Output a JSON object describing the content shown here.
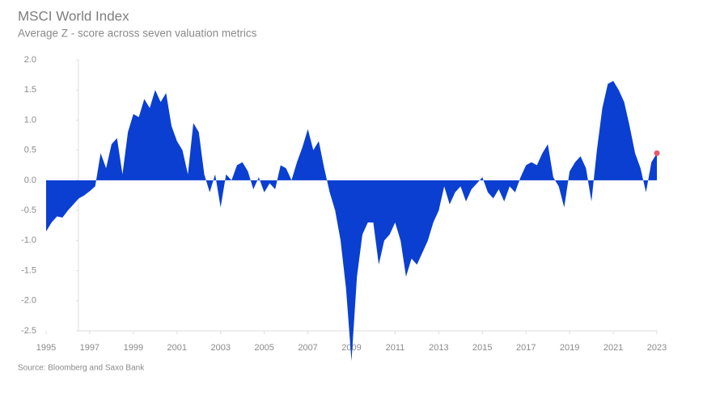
{
  "chart_data": {
    "type": "area",
    "title": "MSCI World Index",
    "subtitle": "Average Z - score across seven valuation metrics",
    "source": "Source: Bloomberg and Saxo Bank",
    "color": "#0a3fd1",
    "last_point_color": "#e8596b",
    "xlim": [
      1995,
      2023
    ],
    "xticks": [
      1995,
      1997,
      1999,
      2001,
      2003,
      2005,
      2007,
      2009,
      2011,
      2013,
      2015,
      2017,
      2019,
      2021,
      2023
    ],
    "ylim": [
      -2.5,
      2.0
    ],
    "yticks": [
      {
        "value": 2,
        "label": "2.0"
      },
      {
        "value": 1.5,
        "label": "1.5"
      },
      {
        "value": 1,
        "label": "1.0"
      },
      {
        "value": 0.5,
        "label": "0.5"
      },
      {
        "value": 0,
        "label": "0.0"
      },
      -0.5,
      {
        "value": -1,
        "label": "-1.0"
      },
      -1.5,
      {
        "value": -2,
        "label": "-2.0"
      },
      -2.5
    ],
    "x": [
      1995.0,
      1995.25,
      1995.5,
      1995.75,
      1996.0,
      1996.25,
      1996.5,
      1996.75,
      1997.0,
      1997.25,
      1997.5,
      1997.75,
      1998.0,
      1998.25,
      1998.5,
      1998.75,
      1999.0,
      1999.25,
      1999.5,
      1999.75,
      2000.0,
      2000.25,
      2000.5,
      2000.75,
      2001.0,
      2001.25,
      2001.5,
      2001.75,
      2002.0,
      2002.25,
      2002.5,
      2002.75,
      2003.0,
      2003.25,
      2003.5,
      2003.75,
      2004.0,
      2004.25,
      2004.5,
      2004.75,
      2005.0,
      2005.25,
      2005.5,
      2005.75,
      2006.0,
      2006.25,
      2006.5,
      2006.75,
      2007.0,
      2007.25,
      2007.5,
      2007.75,
      2008.0,
      2008.25,
      2008.5,
      2008.75,
      2009.0,
      2009.25,
      2009.5,
      2009.75,
      2010.0,
      2010.25,
      2010.5,
      2010.75,
      2011.0,
      2011.25,
      2011.5,
      2011.75,
      2012.0,
      2012.25,
      2012.5,
      2012.75,
      2013.0,
      2013.25,
      2013.5,
      2013.75,
      2014.0,
      2014.25,
      2014.5,
      2014.75,
      2015.0,
      2015.25,
      2015.5,
      2015.75,
      2016.0,
      2016.25,
      2016.5,
      2016.75,
      2017.0,
      2017.25,
      2017.5,
      2017.75,
      2018.0,
      2018.25,
      2018.5,
      2018.75,
      2019.0,
      2019.25,
      2019.5,
      2019.75,
      2020.0,
      2020.25,
      2020.5,
      2020.75,
      2021.0,
      2021.25,
      2021.5,
      2021.75,
      2022.0,
      2022.25,
      2022.5,
      2022.75,
      2023.0
    ],
    "values": [
      -0.85,
      -0.7,
      -0.6,
      -0.62,
      -0.5,
      -0.4,
      -0.3,
      -0.25,
      -0.18,
      -0.1,
      0.45,
      0.2,
      0.6,
      0.7,
      0.1,
      0.8,
      1.1,
      1.05,
      1.35,
      1.2,
      1.5,
      1.3,
      1.45,
      0.9,
      0.65,
      0.5,
      0.1,
      0.95,
      0.8,
      0.1,
      -0.2,
      0.1,
      -0.45,
      0.1,
      0.0,
      0.25,
      0.3,
      0.15,
      -0.15,
      0.05,
      -0.2,
      -0.05,
      -0.15,
      0.25,
      0.2,
      0.0,
      0.3,
      0.55,
      0.85,
      0.5,
      0.65,
      0.2,
      -0.2,
      -0.5,
      -1.0,
      -1.8,
      -3.0,
      -1.6,
      -0.9,
      -0.7,
      -0.7,
      -1.4,
      -1.0,
      -0.9,
      -0.7,
      -1.0,
      -1.6,
      -1.3,
      -1.4,
      -1.2,
      -1.0,
      -0.7,
      -0.5,
      -0.1,
      -0.4,
      -0.2,
      -0.1,
      -0.35,
      -0.15,
      -0.05,
      0.05,
      -0.2,
      -0.3,
      -0.15,
      -0.35,
      -0.1,
      -0.2,
      0.05,
      0.25,
      0.3,
      0.25,
      0.45,
      0.6,
      0.05,
      -0.1,
      -0.45,
      0.15,
      0.3,
      0.4,
      0.2,
      -0.35,
      0.5,
      1.2,
      1.6,
      1.65,
      1.5,
      1.3,
      0.9,
      0.45,
      0.2,
      -0.2,
      0.3,
      0.45
    ]
  }
}
